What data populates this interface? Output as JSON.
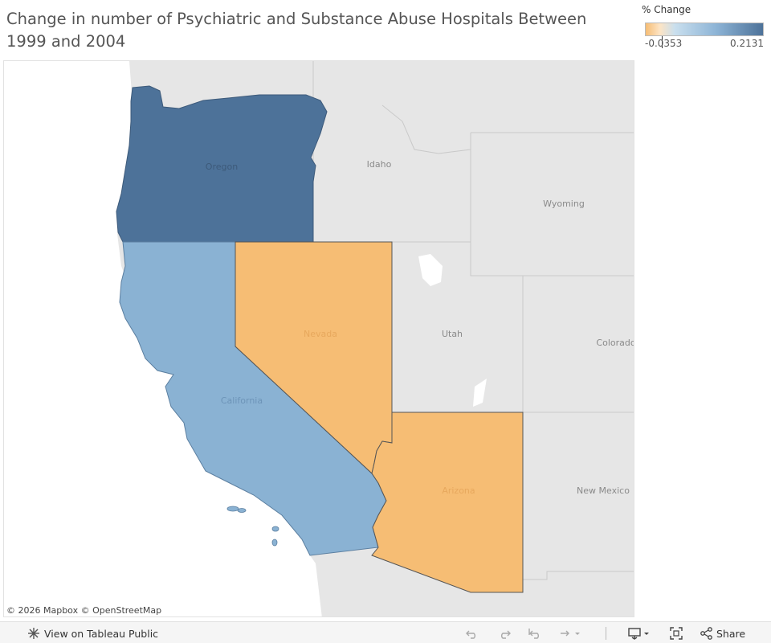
{
  "title": "Change in number of Psychiatric and Substance Abuse Hospitals Between 1999 and 2004",
  "legend": {
    "title": "% Change",
    "min_label": "-0.0353",
    "max_label": "0.2131",
    "min": -0.0353,
    "max": 0.2131,
    "colors": [
      "#f6bd74",
      "#fde4c4",
      "#c9dfee",
      "#8db4d6",
      "#4d7299"
    ]
  },
  "states": [
    {
      "name": "Oregon",
      "label": "Oregon",
      "fill": "#4d7299",
      "highlighted": true
    },
    {
      "name": "California",
      "label": "California",
      "fill": "#8ab2d3",
      "highlighted": true
    },
    {
      "name": "Nevada",
      "label": "Nevada",
      "fill": "#f6bd74",
      "highlighted": true
    },
    {
      "name": "Arizona",
      "label": "Arizona",
      "fill": "#f6bd74",
      "highlighted": true
    },
    {
      "name": "Idaho",
      "label": "Idaho",
      "fill": "#e8e8e8",
      "highlighted": false
    },
    {
      "name": "Wyoming",
      "label": "Wyoming",
      "fill": "#e8e8e8",
      "highlighted": false
    },
    {
      "name": "Utah",
      "label": "Utah",
      "fill": "#e8e8e8",
      "highlighted": false
    },
    {
      "name": "Colorado",
      "label": "Colorado",
      "fill": "#e8e8e8",
      "highlighted": false
    },
    {
      "name": "New Mexico",
      "label": "New Mexico",
      "fill": "#e8e8e8",
      "highlighted": false
    }
  ],
  "attribution": "© 2026 Mapbox  © OpenStreetMap",
  "toolbar": {
    "view_label": "View on Tableau Public",
    "share_label": "Share",
    "icons": [
      "tableau-logo-icon",
      "undo-icon",
      "redo-icon",
      "revert-icon",
      "refresh-icon",
      "download-icon",
      "fullscreen-icon",
      "share-icon"
    ]
  }
}
